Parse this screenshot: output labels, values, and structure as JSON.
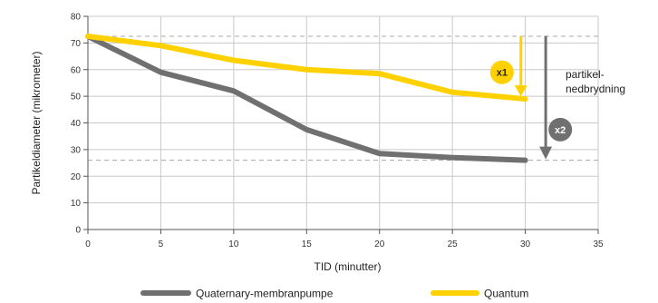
{
  "chart_data": {
    "type": "line",
    "xlabel": "TID (minutter)",
    "ylabel": "Partikeldiameter (mikrometer)",
    "xlim": [
      0,
      35
    ],
    "ylim": [
      0,
      80
    ],
    "xticks": [
      0,
      5,
      10,
      15,
      20,
      25,
      30,
      35
    ],
    "yticks": [
      0,
      10,
      20,
      30,
      40,
      50,
      60,
      70,
      80
    ],
    "grid": true,
    "legend_position": "bottom",
    "series": [
      {
        "name": "Quaternary-membranpumpe",
        "color": "#707070",
        "x": [
          0,
          5,
          10,
          15,
          20,
          25,
          30
        ],
        "y": [
          72.5,
          59,
          52,
          37.5,
          28.5,
          27,
          26
        ]
      },
      {
        "name": "Quantum",
        "color": "#ffd100",
        "x": [
          0,
          5,
          10,
          15,
          20,
          25,
          30
        ],
        "y": [
          72.5,
          69,
          63.5,
          60,
          58.5,
          51.5,
          49
        ]
      }
    ],
    "reference_lines": [
      72.5,
      26
    ],
    "annotations": {
      "badge_quantum": "x1",
      "badge_pump": "x2",
      "label": "partikel-\nnedbrydning"
    }
  }
}
